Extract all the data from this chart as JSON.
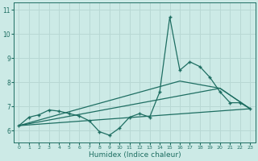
{
  "xlabel": "Humidex (Indice chaleur)",
  "xlim": [
    -0.5,
    23.5
  ],
  "ylim": [
    5.5,
    11.3
  ],
  "yticks": [
    6,
    7,
    8,
    9,
    10,
    11
  ],
  "xticks": [
    0,
    1,
    2,
    3,
    4,
    5,
    6,
    7,
    8,
    9,
    10,
    11,
    12,
    13,
    14,
    15,
    16,
    17,
    18,
    19,
    20,
    21,
    22,
    23
  ],
  "bg_color": "#cceae6",
  "line_color": "#1e6e62",
  "grid_color": "#b8d8d4",
  "line1_x": [
    0,
    1,
    2,
    3,
    4,
    5,
    6,
    7,
    8,
    9,
    10,
    11,
    12,
    13,
    14,
    15,
    16,
    17,
    18,
    19,
    20,
    21,
    22,
    23
  ],
  "line1_y": [
    6.2,
    6.55,
    6.65,
    6.85,
    6.8,
    6.7,
    6.6,
    6.4,
    5.95,
    5.8,
    6.1,
    6.55,
    6.7,
    6.55,
    7.6,
    10.7,
    8.5,
    8.85,
    8.65,
    8.2,
    7.6,
    7.15,
    7.15,
    6.9
  ],
  "trend1_x": [
    0,
    23
  ],
  "trend1_y": [
    6.2,
    6.9
  ],
  "trend2_x": [
    0,
    20,
    23
  ],
  "trend2_y": [
    6.2,
    7.75,
    6.9
  ],
  "trend3_x": [
    0,
    16,
    20,
    23
  ],
  "trend3_y": [
    6.2,
    8.05,
    7.75,
    6.9
  ]
}
